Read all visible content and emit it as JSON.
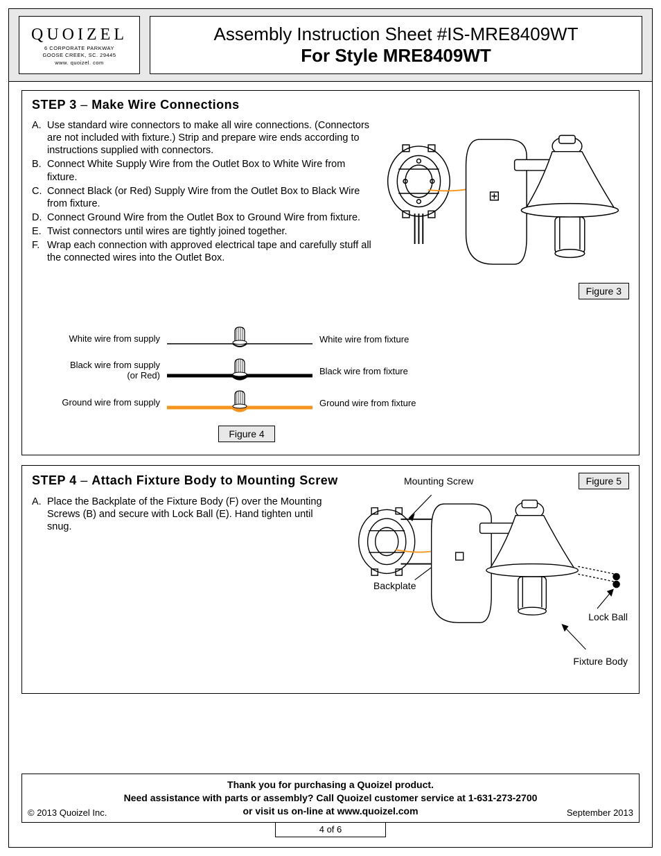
{
  "brand": {
    "name": "QUOIZEL",
    "addr1": "6 CORPORATE PARKWAY",
    "addr2": "GOOSE CREEK, SC. 29445",
    "addr3": "www. quoizel. com"
  },
  "header": {
    "line1": "Assembly Instruction Sheet #IS-MRE8409WT",
    "line2": "For Style MRE8409WT"
  },
  "step3": {
    "title_prefix": "STEP 3",
    "title_dash": " – ",
    "title_rest": "Make Wire Connections",
    "items": [
      {
        "m": "A.",
        "t": "Use standard wire connectors to make all wire connections. (Connectors are not included with fixture.) Strip and prepare wire ends according to instructions supplied with connectors."
      },
      {
        "m": "B.",
        "t": "Connect White Supply Wire from the Outlet Box to White Wire from fixture."
      },
      {
        "m": "C.",
        "t": "Connect Black (or Red) Supply Wire from the Outlet Box to Black Wire from fixture."
      },
      {
        "m": "D.",
        "t": "Connect Ground Wire from the Outlet Box to Ground Wire from fixture."
      },
      {
        "m": "E.",
        "t": "Twist connectors until wires are tightly joined together."
      },
      {
        "m": "F.",
        "t": "Wrap each connection with approved electrical tape and carefully stuff all the connected wires into the Outlet Box."
      }
    ],
    "figure_label": "Figure 3"
  },
  "wire_diagram": {
    "rows": [
      {
        "left": "White wire from supply",
        "left2": "",
        "right": "White wire from fixture",
        "stroke": "#000000",
        "fill": "none",
        "strokeWidth": 1.5
      },
      {
        "left": "Black wire from supply",
        "left2": "(or Red)",
        "right": "Black wire from fixture",
        "stroke": "#000000",
        "fill": "#000000",
        "strokeWidth": 5
      },
      {
        "left": "Ground wire from supply",
        "left2": "",
        "right": "Ground wire from fixture",
        "stroke": "#f7941d",
        "fill": "#f7941d",
        "strokeWidth": 5
      }
    ],
    "label": "Figure 4"
  },
  "step4": {
    "title_prefix": "STEP 4",
    "title_dash": " – ",
    "title_rest": "Attach Fixture Body to Mounting Screw",
    "items": [
      {
        "m": "A.",
        "t": "Place the Backplate of the Fixture Body (F) over the Mounting Screws (B) and secure with Lock Ball (E). Hand tighten until snug."
      }
    ],
    "figure_label": "Figure 5",
    "callouts": {
      "mounting_screw": "Mounting Screw",
      "backplate": "Backplate",
      "lock_ball": "Lock Ball",
      "fixture_body": "Fixture Body"
    }
  },
  "footer": {
    "line1": "Thank you for purchasing a Quoizel product.",
    "line2": "Need assistance with parts or assembly? Call Quoizel customer service at 1-631-273-2700",
    "line3": "or visit us on-line at www.quoizel.com",
    "copyright": "© 2013  Quoizel Inc.",
    "date": "September 2013",
    "page": "4 of 6"
  },
  "colors": {
    "orange": "#f7941d",
    "header_bg": "#e8e8e8"
  }
}
